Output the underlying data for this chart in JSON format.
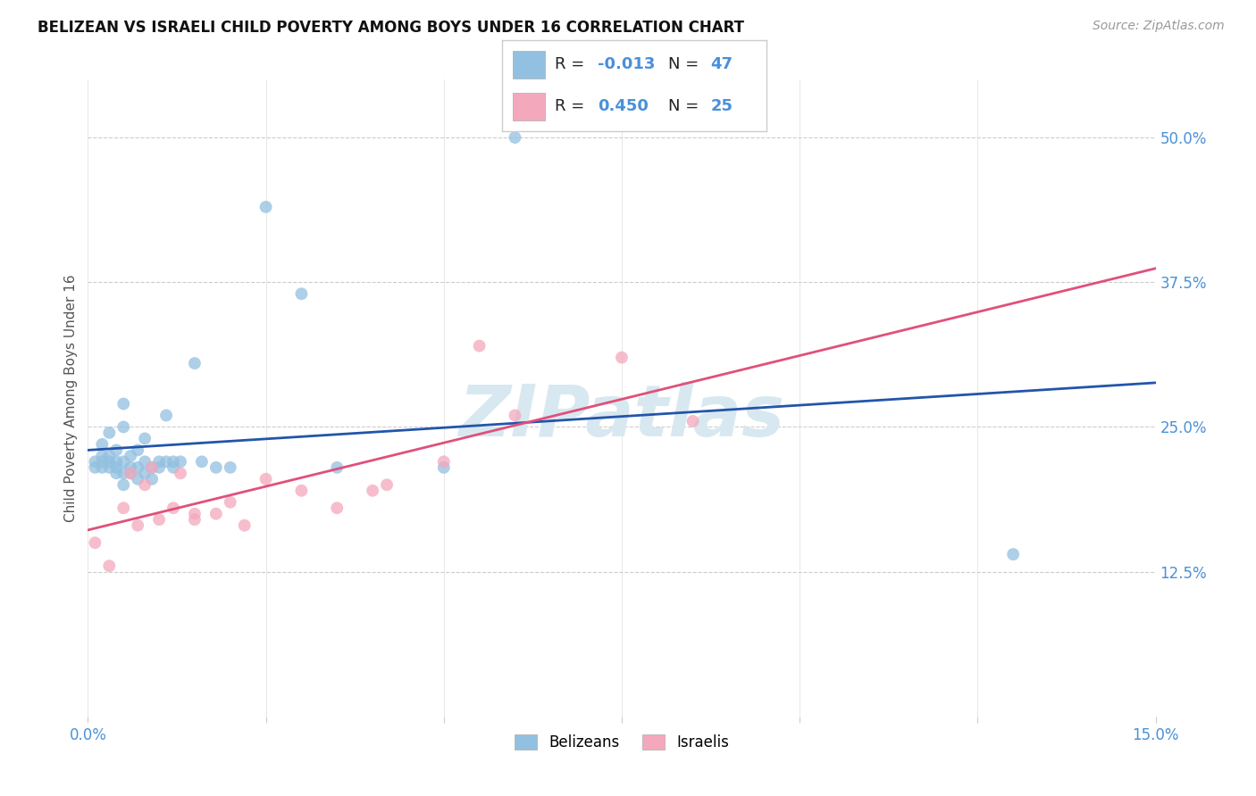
{
  "title": "BELIZEAN VS ISRAELI CHILD POVERTY AMONG BOYS UNDER 16 CORRELATION CHART",
  "source": "Source: ZipAtlas.com",
  "ylabel": "Child Poverty Among Boys Under 16",
  "xlim": [
    0.0,
    0.15
  ],
  "ylim": [
    0.0,
    0.55
  ],
  "xtick_positions": [
    0.0,
    0.025,
    0.05,
    0.075,
    0.1,
    0.125,
    0.15
  ],
  "xticklabels": [
    "0.0%",
    "",
    "",
    "",
    "",
    "",
    "15.0%"
  ],
  "yticks_right": [
    0.125,
    0.25,
    0.375,
    0.5
  ],
  "ytick_right_labels": [
    "12.5%",
    "25.0%",
    "37.5%",
    "50.0%"
  ],
  "belizean_color": "#92c0e0",
  "israeli_color": "#f4a8bc",
  "belizean_line_color": "#2255aa",
  "israeli_line_color": "#e0507a",
  "r_belizean": -0.013,
  "n_belizean": 47,
  "r_israeli": 0.45,
  "n_israeli": 25,
  "belizean_x": [
    0.001,
    0.001,
    0.002,
    0.002,
    0.002,
    0.002,
    0.003,
    0.003,
    0.003,
    0.003,
    0.004,
    0.004,
    0.004,
    0.004,
    0.005,
    0.005,
    0.005,
    0.005,
    0.005,
    0.006,
    0.006,
    0.006,
    0.007,
    0.007,
    0.007,
    0.008,
    0.008,
    0.008,
    0.009,
    0.009,
    0.01,
    0.01,
    0.011,
    0.011,
    0.012,
    0.012,
    0.013,
    0.015,
    0.016,
    0.018,
    0.02,
    0.025,
    0.03,
    0.035,
    0.05,
    0.06,
    0.13
  ],
  "belizean_y": [
    0.215,
    0.22,
    0.215,
    0.22,
    0.225,
    0.235,
    0.215,
    0.22,
    0.225,
    0.245,
    0.21,
    0.215,
    0.22,
    0.23,
    0.2,
    0.21,
    0.22,
    0.25,
    0.27,
    0.21,
    0.215,
    0.225,
    0.205,
    0.215,
    0.23,
    0.21,
    0.22,
    0.24,
    0.205,
    0.215,
    0.215,
    0.22,
    0.22,
    0.26,
    0.215,
    0.22,
    0.22,
    0.305,
    0.22,
    0.215,
    0.215,
    0.44,
    0.365,
    0.215,
    0.215,
    0.5,
    0.14
  ],
  "israeli_x": [
    0.001,
    0.003,
    0.005,
    0.006,
    0.007,
    0.008,
    0.009,
    0.01,
    0.012,
    0.013,
    0.015,
    0.015,
    0.018,
    0.02,
    0.022,
    0.025,
    0.03,
    0.035,
    0.04,
    0.042,
    0.05,
    0.055,
    0.06,
    0.075,
    0.085
  ],
  "israeli_y": [
    0.15,
    0.13,
    0.18,
    0.21,
    0.165,
    0.2,
    0.215,
    0.17,
    0.18,
    0.21,
    0.175,
    0.17,
    0.175,
    0.185,
    0.165,
    0.205,
    0.195,
    0.18,
    0.195,
    0.2,
    0.22,
    0.32,
    0.26,
    0.31,
    0.255
  ],
  "background_color": "#ffffff",
  "watermark_text": "ZIPatlas",
  "belizean_label": "Belizeans",
  "israeli_label": "Israelis"
}
